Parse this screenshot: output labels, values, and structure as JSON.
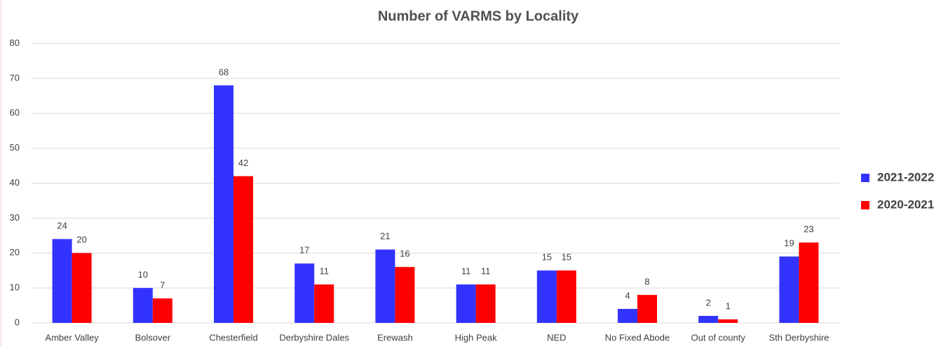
{
  "chart_data": {
    "type": "bar",
    "title": "Number of VARMS by Locality",
    "categories": [
      "Amber Valley",
      "Bolsover",
      "Chesterfield",
      "Derbyshire Dales",
      "Erewash",
      "High Peak",
      "NED",
      "No Fixed Abode",
      "Out of county",
      "Sth Derbyshire"
    ],
    "series": [
      {
        "name": "2021-2022",
        "color": "#3333ff",
        "values": [
          24,
          10,
          68,
          17,
          21,
          11,
          15,
          4,
          2,
          19
        ]
      },
      {
        "name": "2020-2021",
        "color": "#ff0000",
        "values": [
          20,
          7,
          42,
          11,
          16,
          11,
          15,
          8,
          1,
          23
        ]
      }
    ],
    "ylim": [
      0,
      80
    ],
    "yticks": [
      0,
      10,
      20,
      30,
      40,
      50,
      60,
      70,
      80
    ],
    "grid": true,
    "legend": "right"
  }
}
